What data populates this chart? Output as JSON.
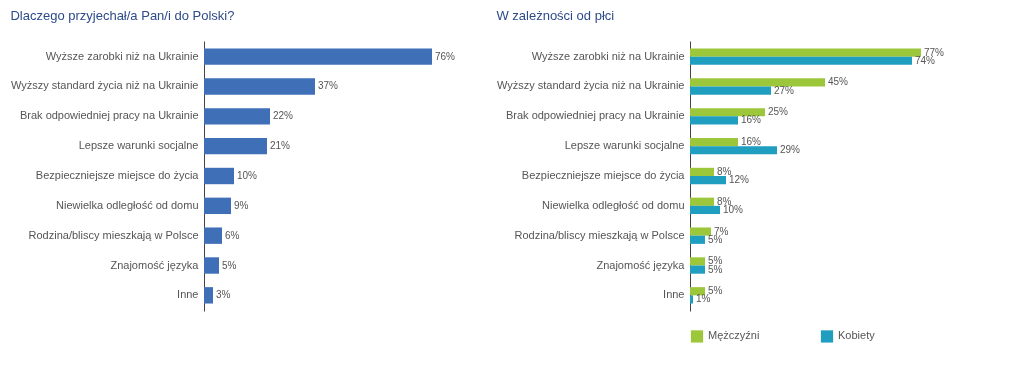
{
  "chart_data": [
    {
      "type": "bar",
      "orientation": "horizontal",
      "title": "Dlaczego przyjechał/a Pan/i do Polski?",
      "categories": [
        "Wyższe zarobki niż na Ukrainie",
        "Wyższy standard życia niż na Ukrainie",
        "Brak odpowiedniej pracy na Ukrainie",
        "Lepsze warunki socjalne",
        "Bezpieczniejsze miejsce do życia",
        "Niewielka odległość od domu",
        "Rodzina/bliscy mieszkają w Polsce",
        "Znajomość języka",
        "Inne"
      ],
      "series": [
        {
          "color": "#3f6fb6",
          "values": [
            76,
            37,
            22,
            21,
            10,
            9,
            6,
            5,
            3
          ],
          "value_labels": [
            "76%",
            "37%",
            "22%",
            "21%",
            "10%",
            "9%",
            "6%",
            "5%",
            "3%"
          ]
        }
      ],
      "tick_labels": "y",
      "legend": false
    },
    {
      "type": "bar",
      "orientation": "horizontal",
      "title": "W zależności od płci",
      "categories": [
        "Wyższe zarobki niż na Ukrainie",
        "Wyższy standard życia niż na Ukrainie",
        "Brak odpowiedniej pracy na Ukrainie",
        "Lepsze warunki socjalne",
        "Bezpieczniejsze miejsce do życia",
        "Niewielka odległość od domu",
        "Rodzina/bliscy mieszkają w Polsce",
        "Znajomość języka",
        "Inne"
      ],
      "series": [
        {
          "name": "Mężczyźni",
          "color": "#9dc73b",
          "values": [
            77,
            45,
            25,
            16,
            8,
            8,
            7,
            5,
            5
          ],
          "value_labels": [
            "77%",
            "45%",
            "25%",
            "16%",
            "8%",
            "8%",
            "7%",
            "5%",
            "5%"
          ]
        },
        {
          "name": "Kobiety",
          "color": "#1f9ec0",
          "values": [
            74,
            27,
            16,
            29,
            12,
            10,
            5,
            5,
            1
          ],
          "value_labels": [
            "74%",
            "27%",
            "16%",
            "29%",
            "12%",
            "10%",
            "5%",
            "5%",
            "1%"
          ]
        }
      ],
      "tick_labels": "y",
      "legend": "bottom"
    }
  ]
}
